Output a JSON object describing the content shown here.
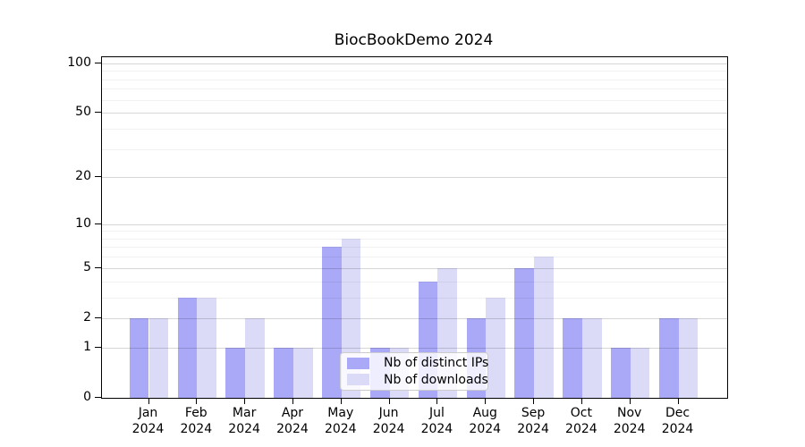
{
  "title": "BiocBookDemo 2024",
  "chart_data": {
    "type": "bar",
    "title": "BiocBookDemo 2024",
    "categories": [
      "Jan 2024",
      "Feb 2024",
      "Mar 2024",
      "Apr 2024",
      "May 2024",
      "Jun 2024",
      "Jul 2024",
      "Aug 2024",
      "Sep 2024",
      "Oct 2024",
      "Nov 2024",
      "Dec 2024"
    ],
    "x_tick_line1": [
      "Jan",
      "Feb",
      "Mar",
      "Apr",
      "May",
      "Jun",
      "Jul",
      "Aug",
      "Sep",
      "Oct",
      "Nov",
      "Dec"
    ],
    "x_tick_line2": [
      "2024",
      "2024",
      "2024",
      "2024",
      "2024",
      "2024",
      "2024",
      "2024",
      "2024",
      "2024",
      "2024",
      "2024"
    ],
    "series": [
      {
        "name": "Nb of distinct IPs",
        "color": "#a9a9f7",
        "values": [
          2,
          3,
          1,
          1,
          7,
          1,
          4,
          2,
          5,
          2,
          1,
          2
        ]
      },
      {
        "name": "Nb of downloads",
        "color": "#dbdbf8",
        "values": [
          2,
          3,
          2,
          1,
          8,
          1,
          5,
          3,
          6,
          2,
          1,
          2
        ]
      }
    ],
    "xlabel": "",
    "ylabel": "",
    "yscale": "log10(1+y)",
    "ylim": [
      0,
      109
    ],
    "y_major_ticks": [
      0,
      1,
      2,
      5,
      10,
      20,
      50,
      100
    ],
    "y_minor_gridlines": [
      3,
      4,
      6,
      7,
      8,
      9,
      30,
      40,
      60,
      70,
      80,
      90
    ],
    "grid": "horizontal major+minor",
    "legend_position": "lower center inside plot"
  }
}
